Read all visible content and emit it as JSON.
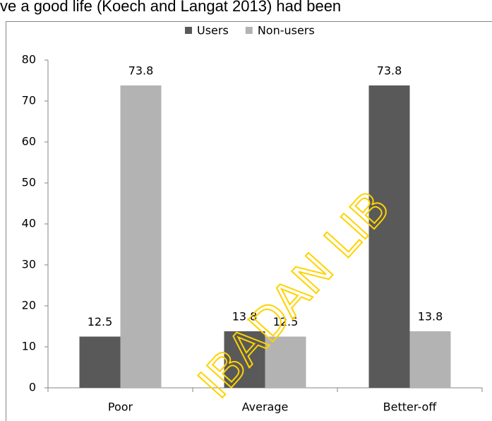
{
  "page_text": "ve a good life (Koech and Langat 2013) had been",
  "watermark": "IBADAN LIB",
  "chart_data": {
    "type": "bar",
    "categories": [
      "Poor",
      "Average",
      "Better-off"
    ],
    "series": [
      {
        "name": "Users",
        "color": "#595959",
        "values": [
          12.5,
          13.8,
          73.8
        ]
      },
      {
        "name": "Non-users",
        "color": "#b3b3b3",
        "values": [
          73.8,
          12.5,
          13.8
        ]
      }
    ],
    "ylim": [
      0,
      80
    ],
    "yticks": [
      0,
      10,
      20,
      30,
      40,
      50,
      60,
      70,
      80
    ],
    "grid": false,
    "legend": "top"
  }
}
